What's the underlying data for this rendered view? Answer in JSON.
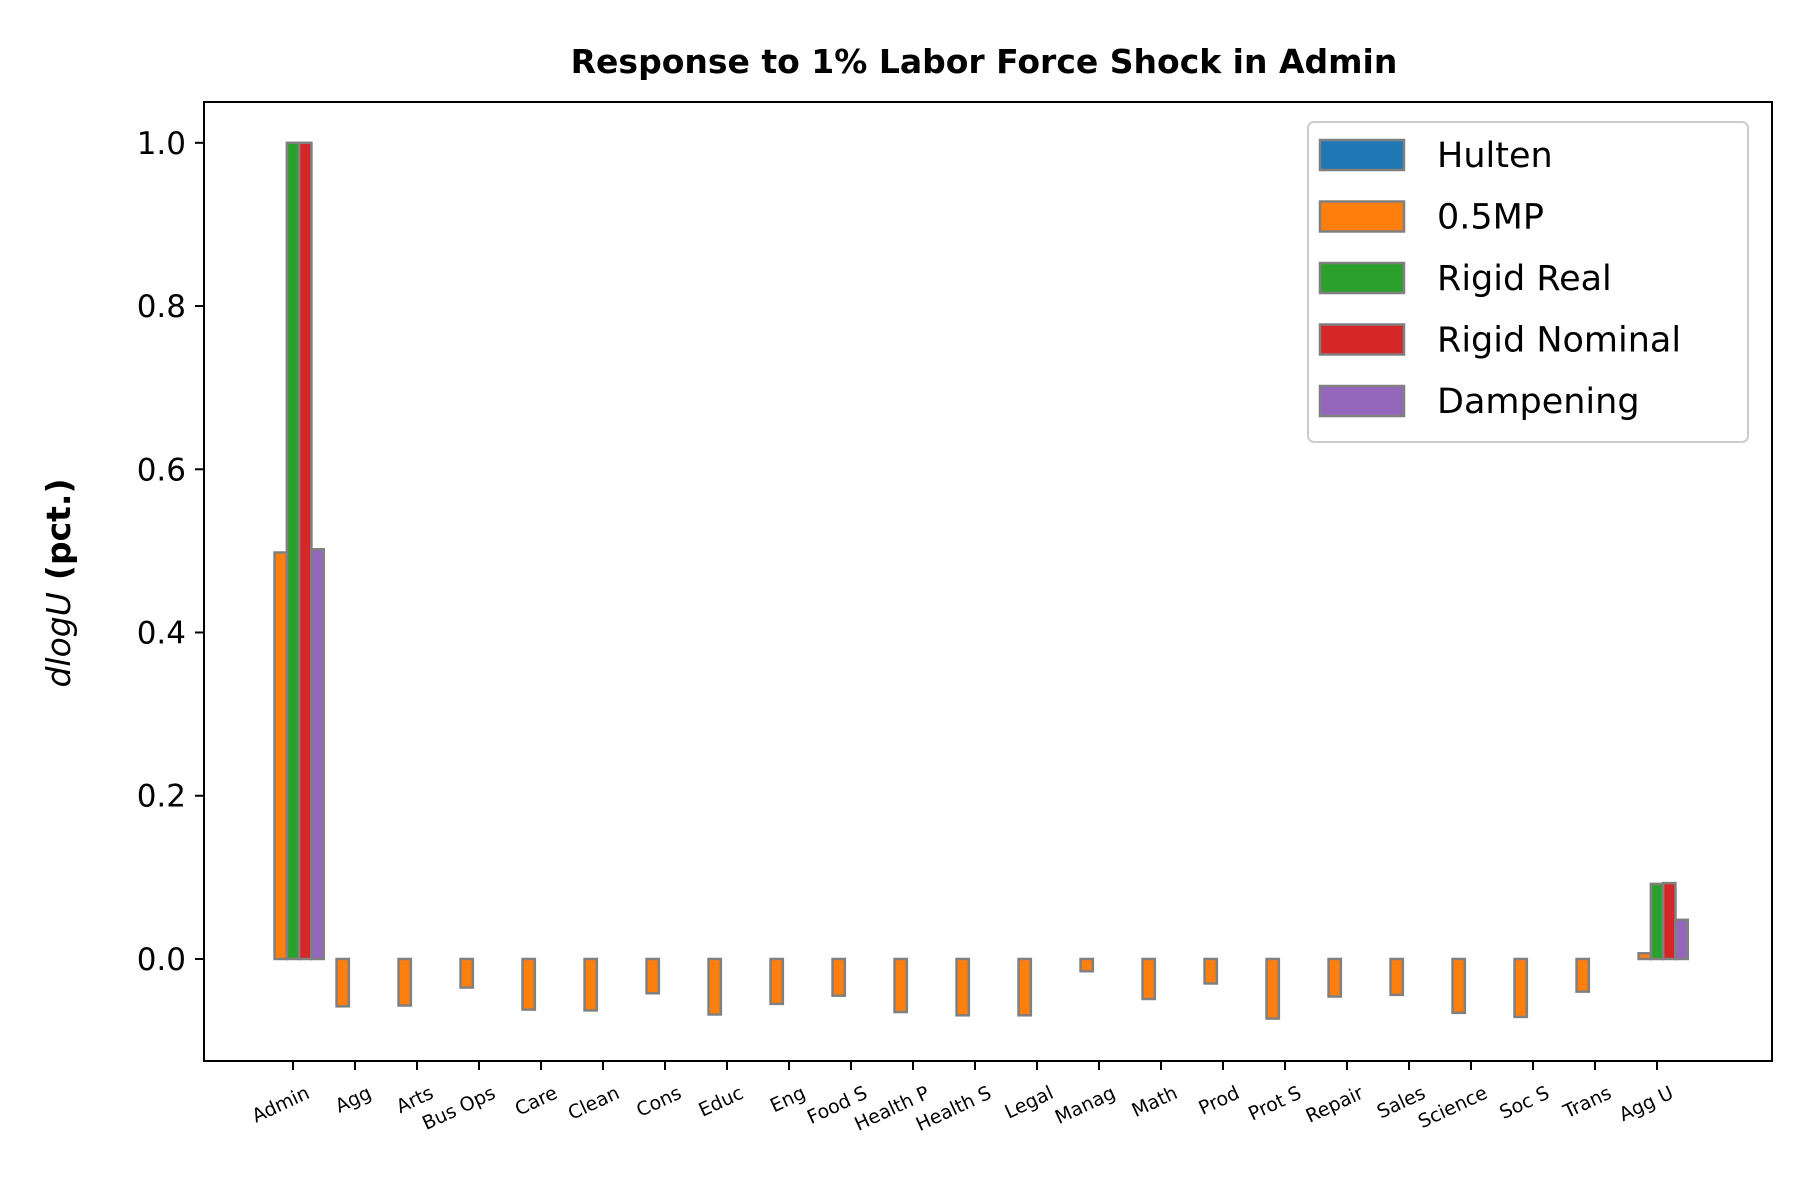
{
  "chart_data": {
    "type": "bar",
    "title": "Response to 1% Labor Force Shock in Admin",
    "ylabel": "dlog U (pct.)",
    "ylabel_math": "dlogU",
    "ylabel_unit": "(pct.)",
    "xlabel": "",
    "ylim": [
      -0.125,
      1.05
    ],
    "yticks": [
      "0.0",
      "0.2",
      "0.4",
      "0.6",
      "0.8",
      "1.0"
    ],
    "ytick_values": [
      0.0,
      0.2,
      0.4,
      0.6,
      0.8,
      1.0
    ],
    "grid": false,
    "legend_position": "top-right",
    "bar_edge_color": "#808080",
    "categories": [
      "Admin",
      "Agg",
      "Arts",
      "Bus Ops",
      "Care",
      "Clean",
      "Cons",
      "Educ",
      "Eng",
      "Food S",
      "Health P",
      "Health S",
      "Legal",
      "Manag",
      "Math",
      "Prod",
      "Prot S",
      "Repair",
      "Sales",
      "Science",
      "Soc S",
      "Trans",
      "Agg U"
    ],
    "series": [
      {
        "name": "Hulten",
        "color": "#1f77b4",
        "values": [
          0,
          0,
          0,
          0,
          0,
          0,
          0,
          0,
          0,
          0,
          0,
          0,
          0,
          0,
          0,
          0,
          0,
          0,
          0,
          0,
          0,
          0,
          0
        ]
      },
      {
        "name": "0.5MP",
        "color": "#ff7f0e",
        "values": [
          0.498,
          -0.058,
          -0.057,
          -0.035,
          -0.062,
          -0.063,
          -0.042,
          -0.068,
          -0.055,
          -0.045,
          -0.065,
          -0.069,
          -0.069,
          -0.015,
          -0.049,
          -0.03,
          -0.073,
          -0.046,
          -0.044,
          -0.066,
          -0.071,
          -0.04,
          0.007
        ]
      },
      {
        "name": "Rigid Real",
        "color": "#2ca02c",
        "values": [
          1.0,
          0,
          0,
          0,
          0,
          0,
          0,
          0,
          0,
          0,
          0,
          0,
          0,
          0,
          0,
          0,
          0,
          0,
          0,
          0,
          0,
          0,
          0.092
        ]
      },
      {
        "name": "Rigid Nominal",
        "color": "#d62728",
        "values": [
          1.0,
          0,
          0,
          0,
          0,
          0,
          0,
          0,
          0,
          0,
          0,
          0,
          0,
          0,
          0,
          0,
          0,
          0,
          0,
          0,
          0,
          0,
          0.093
        ]
      },
      {
        "name": "Dampening",
        "color": "#9467bd",
        "values": [
          0.502,
          0,
          0,
          0,
          0,
          0,
          0,
          0,
          0,
          0,
          0,
          0,
          0,
          0,
          0,
          0,
          0,
          0,
          0,
          0,
          0,
          0,
          0.048
        ]
      }
    ]
  }
}
